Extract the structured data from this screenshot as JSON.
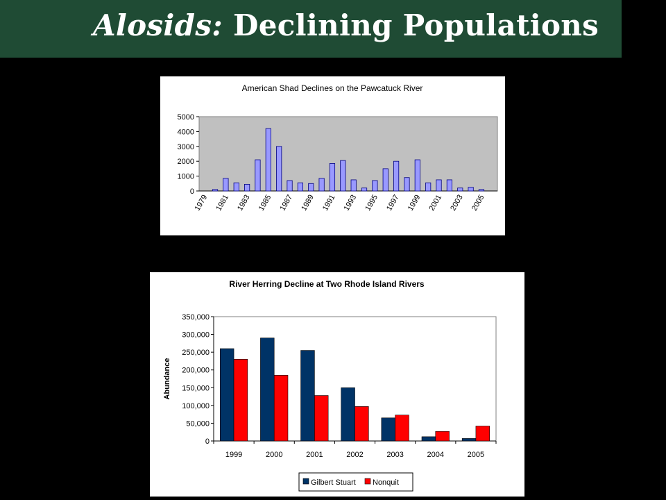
{
  "slide": {
    "title_italic": "Alosids:",
    "title_rest": "Declining Populations",
    "colors": {
      "title_bar": "#1f4b34",
      "background": "#000000"
    }
  },
  "chart_data": [
    {
      "type": "bar",
      "title": "American Shad Declines on the Pawcatuck River",
      "xlabel": "",
      "ylabel": "",
      "ylim": [
        0,
        5000
      ],
      "yticks": [
        0,
        1000,
        2000,
        3000,
        4000,
        5000
      ],
      "grid": false,
      "plot_background": "#c0c0c0",
      "bar_color": "#9999ff",
      "categories": [
        "1979",
        "1980",
        "1981",
        "1982",
        "1983",
        "1984",
        "1985",
        "1986",
        "1987",
        "1988",
        "1989",
        "1990",
        "1991",
        "1992",
        "1993",
        "1994",
        "1995",
        "1996",
        "1997",
        "1998",
        "1999",
        "2000",
        "2001",
        "2002",
        "2003",
        "2004",
        "2005",
        "2006"
      ],
      "tick_labels": [
        "1979",
        "1981",
        "1983",
        "1985",
        "1987",
        "1989",
        "1991",
        "1993",
        "1995",
        "1997",
        "1999",
        "2001",
        "2003",
        "2005"
      ],
      "values": [
        0,
        100,
        850,
        550,
        450,
        2100,
        4200,
        3000,
        700,
        550,
        500,
        850,
        1850,
        2050,
        750,
        200,
        700,
        1500,
        2000,
        900,
        2100,
        550,
        750,
        750,
        200,
        250,
        100,
        0
      ]
    },
    {
      "type": "bar",
      "title": "River Herring Decline at Two Rhode Island Rivers",
      "xlabel": "",
      "ylabel": "Abundance",
      "ylim": [
        0,
        350000
      ],
      "yticks": [
        0,
        50000,
        100000,
        150000,
        200000,
        250000,
        300000,
        350000
      ],
      "ytick_labels": [
        "0",
        "50,000",
        "100,000",
        "150,000",
        "200,000",
        "250,000",
        "300,000",
        "350,000"
      ],
      "grid": false,
      "legend": "bottom",
      "categories": [
        "1999",
        "2000",
        "2001",
        "2002",
        "2003",
        "2004",
        "2005"
      ],
      "series": [
        {
          "name": "Gilbert Stuart",
          "color": "#003366",
          "values": [
            260000,
            290000,
            255000,
            150000,
            65000,
            12000,
            7000
          ]
        },
        {
          "name": "Nonquit",
          "color": "#ff0000",
          "values": [
            230000,
            185000,
            128000,
            97000,
            73000,
            27000,
            42000
          ]
        }
      ]
    }
  ]
}
